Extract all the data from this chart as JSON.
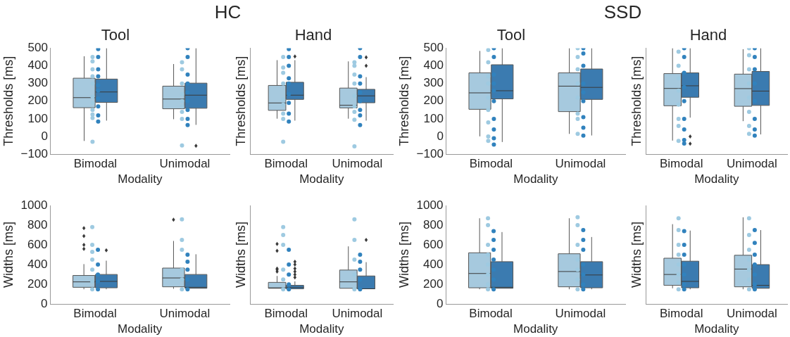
{
  "chart_data": [
    {
      "type": "box",
      "title": "Tool",
      "xlabel": "Modality",
      "ylabel": "Thresholds [ms]",
      "annotations": [
        "HC"
      ],
      "categories": [
        "Bimodal",
        "Unimodal"
      ],
      "ylim": [
        -100,
        500
      ],
      "yticks": [
        -100,
        0,
        100,
        200,
        300,
        400,
        500
      ],
      "grid": false,
      "series": [
        {
          "type": "box",
          "color": "#a6c9de",
          "boxes": [
            {
              "low": -25,
              "q1": 163,
              "median": 220,
              "q3": 330,
              "high": 454
            },
            {
              "low": 98,
              "q1": 157,
              "median": 212,
              "q3": 285,
              "high": 410
            }
          ]
        },
        {
          "type": "box",
          "color": "#3b7bb0",
          "boxes": [
            {
              "low": 90,
              "q1": 193,
              "median": 252,
              "q3": 325,
              "high": 500
            },
            {
              "low": 66,
              "q1": 160,
              "median": 234,
              "q3": 302,
              "high": 500,
              "outliers": [
                -52
              ]
            }
          ]
        },
        {
          "type": "scatter",
          "color": "#9ecae1",
          "x": [
            "Bimodal",
            "Bimodal",
            "Bimodal",
            "Bimodal",
            "Bimodal",
            "Bimodal",
            "Bimodal",
            "Bimodal",
            "Bimodal",
            "Bimodal",
            "Bimodal",
            "Unimodal",
            "Unimodal",
            "Unimodal",
            "Unimodal",
            "Unimodal",
            "Unimodal",
            "Unimodal",
            "Unimodal",
            "Unimodal"
          ],
          "values": [
            -30,
            105,
            125,
            150,
            190,
            225,
            300,
            340,
            380,
            425,
            450,
            -50,
            100,
            140,
            170,
            200,
            240,
            300,
            380,
            420
          ]
        },
        {
          "type": "scatter",
          "color": "#3182bd",
          "x": [
            "Bimodal",
            "Bimodal",
            "Bimodal",
            "Bimodal",
            "Bimodal",
            "Bimodal",
            "Bimodal",
            "Bimodal",
            "Bimodal",
            "Bimodal",
            "Unimodal",
            "Unimodal",
            "Unimodal",
            "Unimodal",
            "Unimodal",
            "Unimodal",
            "Unimodal",
            "Unimodal",
            "Unimodal"
          ],
          "values": [
            85,
            120,
            170,
            215,
            260,
            290,
            340,
            380,
            450,
            495,
            65,
            100,
            150,
            200,
            250,
            300,
            350,
            450,
            500
          ]
        }
      ]
    },
    {
      "type": "box",
      "title": "Hand",
      "xlabel": "Modality",
      "ylabel": "Thresholds [ms]",
      "categories": [
        "Bimodal",
        "Unimodal"
      ],
      "ylim": [
        -100,
        500
      ],
      "yticks": [
        -100,
        0,
        100,
        200,
        300,
        400,
        500
      ],
      "tick_labels": "x",
      "grid": false,
      "series": [
        {
          "type": "box",
          "color": "#a6c9de",
          "boxes": [
            {
              "low": 101,
              "q1": 148,
              "median": 190,
              "q3": 289,
              "high": 432
            },
            {
              "low": 101,
              "q1": 162,
              "median": 177,
              "q3": 274,
              "high": 425
            }
          ]
        },
        {
          "type": "box",
          "color": "#3b7bb0",
          "boxes": [
            {
              "low": 90,
              "q1": 210,
              "median": 234,
              "q3": 307,
              "high": 432,
              "outliers": [
                453
              ]
            },
            {
              "low": 90,
              "q1": 191,
              "median": 230,
              "q3": 267,
              "high": 336,
              "outliers": [
                400,
                448
              ]
            }
          ]
        },
        {
          "type": "scatter",
          "color": "#9ecae1",
          "x": [
            "Bimodal",
            "Bimodal",
            "Bimodal",
            "Bimodal",
            "Bimodal",
            "Bimodal",
            "Bimodal",
            "Bimodal",
            "Bimodal",
            "Unimodal",
            "Unimodal",
            "Unimodal",
            "Unimodal",
            "Unimodal",
            "Unimodal",
            "Unimodal",
            "Unimodal",
            "Unimodal"
          ],
          "values": [
            -30,
            100,
            130,
            180,
            210,
            300,
            360,
            390,
            450,
            -55,
            95,
            140,
            170,
            230,
            300,
            350,
            400,
            420
          ]
        },
        {
          "type": "scatter",
          "color": "#3182bd",
          "x": [
            "Bimodal",
            "Bimodal",
            "Bimodal",
            "Bimodal",
            "Bimodal",
            "Bimodal",
            "Bimodal",
            "Bimodal",
            "Bimodal",
            "Unimodal",
            "Unimodal",
            "Unimodal",
            "Unimodal",
            "Unimodal",
            "Unimodal",
            "Unimodal",
            "Unimodal",
            "Unimodal"
          ],
          "values": [
            85,
            130,
            190,
            240,
            300,
            330,
            400,
            450,
            495,
            65,
            120,
            150,
            200,
            250,
            300,
            340,
            450,
            500
          ]
        }
      ]
    },
    {
      "type": "box",
      "title": "Tool",
      "xlabel": "Modality",
      "ylabel": "Thresholds [ms]",
      "annotations": [
        "SSD"
      ],
      "categories": [
        "Bimodal",
        "Unimodal"
      ],
      "ylim": [
        -100,
        500
      ],
      "yticks": [
        -100,
        0,
        100,
        200,
        300,
        400,
        500
      ],
      "grid": false,
      "series": [
        {
          "type": "box",
          "color": "#a6c9de",
          "boxes": [
            {
              "low": 1,
              "q1": 154,
              "median": 247,
              "q3": 360,
              "high": 484
            },
            {
              "low": 15,
              "q1": 141,
              "median": 285,
              "q3": 360,
              "high": 500
            }
          ]
        },
        {
          "type": "box",
          "color": "#3b7bb0",
          "boxes": [
            {
              "low": -31,
              "q1": 213,
              "median": 259,
              "q3": 406,
              "high": 500
            },
            {
              "low": 6,
              "q1": 210,
              "median": 278,
              "q3": 382,
              "high": 500
            }
          ]
        },
        {
          "type": "scatter",
          "color": "#9ecae1",
          "x": [
            "Bimodal",
            "Bimodal",
            "Bimodal",
            "Bimodal",
            "Bimodal",
            "Bimodal",
            "Bimodal",
            "Bimodal",
            "Bimodal",
            "Unimodal",
            "Unimodal",
            "Unimodal",
            "Unimodal",
            "Unimodal",
            "Unimodal",
            "Unimodal",
            "Unimodal"
          ],
          "values": [
            -25,
            0,
            80,
            150,
            220,
            300,
            340,
            420,
            490,
            15,
            100,
            130,
            220,
            300,
            380,
            450,
            500
          ]
        },
        {
          "type": "scatter",
          "color": "#3182bd",
          "x": [
            "Bimodal",
            "Bimodal",
            "Bimodal",
            "Bimodal",
            "Bimodal",
            "Bimodal",
            "Bimodal",
            "Bimodal",
            "Bimodal",
            "Bimodal",
            "Unimodal",
            "Unimodal",
            "Unimodal",
            "Unimodal",
            "Unimodal",
            "Unimodal",
            "Unimodal",
            "Unimodal",
            "Unimodal"
          ],
          "values": [
            -45,
            -10,
            40,
            100,
            200,
            260,
            300,
            350,
            450,
            500,
            5,
            50,
            110,
            200,
            250,
            300,
            400,
            470,
            500
          ]
        }
      ]
    },
    {
      "type": "box",
      "title": "Hand",
      "xlabel": "Modality",
      "ylabel": "Thresholds [ms]",
      "categories": [
        "Bimodal",
        "Unimodal"
      ],
      "ylim": [
        -100,
        500
      ],
      "yticks": [
        -100,
        0,
        100,
        200,
        300,
        400,
        500
      ],
      "tick_labels": "x",
      "grid": false,
      "series": [
        {
          "type": "box",
          "color": "#a6c9de",
          "boxes": [
            {
              "low": -23,
              "q1": 174,
              "median": 272,
              "q3": 356,
              "high": 500
            },
            {
              "low": 87,
              "q1": 171,
              "median": 271,
              "q3": 353,
              "high": 494
            }
          ]
        },
        {
          "type": "box",
          "color": "#3b7bb0",
          "boxes": [
            {
              "low": 107,
              "q1": 222,
              "median": 287,
              "q3": 360,
              "high": 500,
              "outliers": [
                0,
                -41
              ]
            },
            {
              "low": 12,
              "q1": 176,
              "median": 257,
              "q3": 368,
              "high": 500
            }
          ]
        },
        {
          "type": "scatter",
          "color": "#9ecae1",
          "x": [
            "Bimodal",
            "Bimodal",
            "Bimodal",
            "Bimodal",
            "Bimodal",
            "Bimodal",
            "Bimodal",
            "Bimodal",
            "Unimodal",
            "Unimodal",
            "Unimodal",
            "Unimodal",
            "Unimodal",
            "Unimodal",
            "Unimodal",
            "Unimodal"
          ],
          "values": [
            -25,
            60,
            100,
            180,
            260,
            330,
            400,
            480,
            15,
            60,
            140,
            220,
            300,
            380,
            460,
            500
          ]
        },
        {
          "type": "scatter",
          "color": "#3182bd",
          "x": [
            "Bimodal",
            "Bimodal",
            "Bimodal",
            "Bimodal",
            "Bimodal",
            "Bimodal",
            "Bimodal",
            "Bimodal",
            "Bimodal",
            "Unimodal",
            "Unimodal",
            "Unimodal",
            "Unimodal",
            "Unimodal",
            "Unimodal",
            "Unimodal",
            "Unimodal"
          ],
          "values": [
            -40,
            -20,
            40,
            100,
            200,
            280,
            360,
            450,
            500,
            5,
            40,
            100,
            200,
            300,
            380,
            450,
            500
          ]
        }
      ]
    },
    {
      "type": "box",
      "xlabel": "Modality",
      "ylabel": "Widths [ms]",
      "categories": [
        "Bimodal",
        "Unimodal"
      ],
      "ylim": [
        0,
        1000
      ],
      "yticks": [
        0,
        200,
        400,
        600,
        800,
        1000
      ],
      "grid": false,
      "series": [
        {
          "type": "box",
          "color": "#a6c9de",
          "boxes": [
            {
              "low": 150,
              "q1": 170,
              "median": 225,
              "q3": 290,
              "high": 405,
              "outliers": [
                560,
                600,
                690,
                770
              ]
            },
            {
              "low": 155,
              "q1": 175,
              "median": 265,
              "q3": 365,
              "high": 640,
              "outliers": [
                855
              ]
            }
          ]
        },
        {
          "type": "box",
          "color": "#3b7bb0",
          "boxes": [
            {
              "low": 150,
              "q1": 165,
              "median": 230,
              "q3": 300,
              "high": 440,
              "outliers": [
                545
              ]
            },
            {
              "low": 150,
              "q1": 160,
              "median": 170,
              "q3": 300,
              "high": 505
            }
          ]
        },
        {
          "type": "scatter",
          "color": "#9ecae1",
          "x": [
            "Bimodal",
            "Bimodal",
            "Bimodal",
            "Bimodal",
            "Bimodal",
            "Bimodal",
            "Bimodal",
            "Unimodal",
            "Unimodal",
            "Unimodal",
            "Unimodal",
            "Unimodal",
            "Unimodal"
          ],
          "values": [
            150,
            230,
            350,
            450,
            530,
            600,
            780,
            150,
            250,
            350,
            550,
            650,
            860
          ]
        },
        {
          "type": "scatter",
          "color": "#3182bd",
          "x": [
            "Bimodal",
            "Bimodal",
            "Bimodal",
            "Bimodal",
            "Bimodal",
            "Unimodal",
            "Unimodal",
            "Unimodal",
            "Unimodal",
            "Unimodal"
          ],
          "values": [
            150,
            230,
            300,
            400,
            550,
            150,
            250,
            350,
            430,
            500
          ]
        }
      ]
    },
    {
      "type": "box",
      "xlabel": "Modality",
      "ylabel": "Widths [ms]",
      "categories": [
        "Bimodal",
        "Unimodal"
      ],
      "ylim": [
        0,
        1000
      ],
      "yticks": [
        0,
        200,
        400,
        600,
        800,
        1000
      ],
      "tick_labels": "x",
      "grid": false,
      "series": [
        {
          "type": "box",
          "color": "#a6c9de",
          "boxes": [
            {
              "low": 150,
              "q1": 160,
              "median": 165,
              "q3": 220,
              "high": 285,
              "outliers": [
                330,
                350,
                360,
                540,
                610
              ]
            },
            {
              "low": 150,
              "q1": 160,
              "median": 225,
              "q3": 345,
              "high": 585
            }
          ]
        },
        {
          "type": "box",
          "color": "#3b7bb0",
          "boxes": [
            {
              "low": 150,
              "q1": 155,
              "median": 170,
              "q3": 190,
              "high": 230,
              "outliers": [
                270,
                300,
                330,
                360,
                400,
                430
              ]
            },
            {
              "low": 150,
              "q1": 155,
              "median": 155,
              "q3": 285,
              "high": 425,
              "outliers": [
                650
              ]
            }
          ]
        },
        {
          "type": "scatter",
          "color": "#9ecae1",
          "x": [
            "Bimodal",
            "Bimodal",
            "Bimodal",
            "Bimodal",
            "Bimodal",
            "Bimodal",
            "Unimodal",
            "Unimodal",
            "Unimodal",
            "Unimodal",
            "Unimodal"
          ],
          "values": [
            150,
            250,
            350,
            600,
            700,
            780,
            150,
            300,
            450,
            650,
            860
          ]
        },
        {
          "type": "scatter",
          "color": "#3182bd",
          "x": [
            "Bimodal",
            "Bimodal",
            "Bimodal",
            "Bimodal",
            "Bimodal",
            "Unimodal",
            "Unimodal",
            "Unimodal",
            "Unimodal",
            "Unimodal"
          ],
          "values": [
            150,
            200,
            300,
            400,
            550,
            150,
            250,
            350,
            430,
            500
          ]
        }
      ]
    },
    {
      "type": "box",
      "xlabel": "Modality",
      "ylabel": "Widths [ms]",
      "categories": [
        "Bimodal",
        "Unimodal"
      ],
      "ylim": [
        0,
        1000
      ],
      "yticks": [
        0,
        200,
        400,
        600,
        800,
        1000
      ],
      "grid": false,
      "series": [
        {
          "type": "box",
          "color": "#a6c9de",
          "boxes": [
            {
              "low": 150,
              "q1": 165,
              "median": 310,
              "q3": 520,
              "high": 870
            },
            {
              "low": 150,
              "q1": 175,
              "median": 330,
              "q3": 510,
              "high": 870
            }
          ]
        },
        {
          "type": "box",
          "color": "#3b7bb0",
          "boxes": [
            {
              "low": 150,
              "q1": 160,
              "median": 170,
              "q3": 430,
              "high": 730
            },
            {
              "low": 150,
              "q1": 165,
              "median": 295,
              "q3": 430,
              "high": 680
            }
          ]
        },
        {
          "type": "scatter",
          "color": "#9ecae1",
          "x": [
            "Bimodal",
            "Bimodal",
            "Bimodal",
            "Bimodal",
            "Bimodal",
            "Bimodal",
            "Bimodal",
            "Bimodal",
            "Unimodal",
            "Unimodal",
            "Unimodal",
            "Unimodal",
            "Unimodal",
            "Unimodal",
            "Unimodal"
          ],
          "values": [
            150,
            200,
            300,
            400,
            500,
            600,
            800,
            870,
            150,
            250,
            350,
            450,
            600,
            800,
            880
          ]
        },
        {
          "type": "scatter",
          "color": "#3182bd",
          "x": [
            "Bimodal",
            "Bimodal",
            "Bimodal",
            "Bimodal",
            "Bimodal",
            "Bimodal",
            "Bimodal",
            "Unimodal",
            "Unimodal",
            "Unimodal",
            "Unimodal",
            "Unimodal",
            "Unimodal",
            "Unimodal"
          ],
          "values": [
            150,
            250,
            350,
            450,
            550,
            650,
            740,
            150,
            200,
            300,
            400,
            550,
            650,
            750
          ]
        }
      ]
    },
    {
      "type": "box",
      "xlabel": "Modality",
      "ylabel": "Widths [ms]",
      "categories": [
        "Bimodal",
        "Unimodal"
      ],
      "ylim": [
        0,
        1000
      ],
      "yticks": [
        0,
        200,
        400,
        600,
        800,
        1000
      ],
      "tick_labels": "x",
      "grid": false,
      "series": [
        {
          "type": "box",
          "color": "#a6c9de",
          "boxes": [
            {
              "low": 160,
              "q1": 190,
              "median": 300,
              "q3": 465,
              "high": 810
            },
            {
              "low": 150,
              "q1": 175,
              "median": 355,
              "q3": 495,
              "high": 880
            }
          ]
        },
        {
          "type": "box",
          "color": "#3b7bb0",
          "boxes": [
            {
              "low": 150,
              "q1": 165,
              "median": 230,
              "q3": 435,
              "high": 745
            },
            {
              "low": 150,
              "q1": 160,
              "median": 190,
              "q3": 400,
              "high": 750
            }
          ]
        },
        {
          "type": "scatter",
          "color": "#9ecae1",
          "x": [
            "Bimodal",
            "Bimodal",
            "Bimodal",
            "Bimodal",
            "Bimodal",
            "Bimodal",
            "Bimodal",
            "Bimodal",
            "Unimodal",
            "Unimodal",
            "Unimodal",
            "Unimodal",
            "Unimodal",
            "Unimodal",
            "Unimodal"
          ],
          "values": [
            150,
            220,
            300,
            400,
            500,
            600,
            750,
            870,
            150,
            250,
            350,
            450,
            550,
            700,
            870
          ]
        },
        {
          "type": "scatter",
          "color": "#3182bd",
          "x": [
            "Bimodal",
            "Bimodal",
            "Bimodal",
            "Bimodal",
            "Bimodal",
            "Bimodal",
            "Bimodal",
            "Unimodal",
            "Unimodal",
            "Unimodal",
            "Unimodal",
            "Unimodal",
            "Unimodal",
            "Unimodal"
          ],
          "values": [
            150,
            200,
            300,
            400,
            500,
            600,
            740,
            150,
            200,
            300,
            400,
            500,
            620,
            750
          ]
        }
      ]
    }
  ]
}
